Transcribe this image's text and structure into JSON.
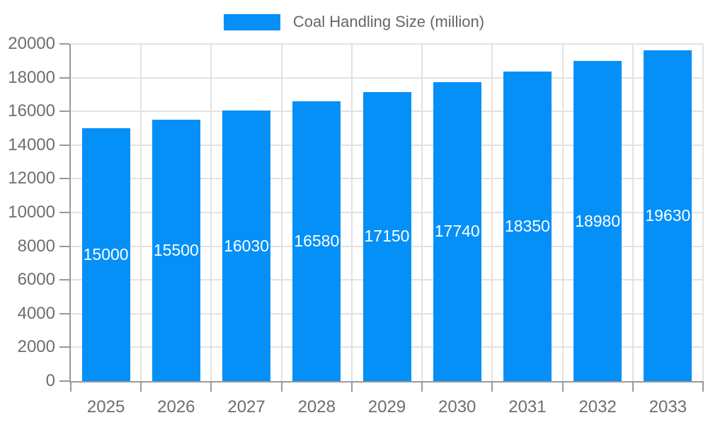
{
  "legend": {
    "label": "Coal Handling Size (million)"
  },
  "chart_data": {
    "type": "bar",
    "title": "Coal Handling Size (million)",
    "categories": [
      "2025",
      "2026",
      "2027",
      "2028",
      "2029",
      "2030",
      "2031",
      "2032",
      "2033"
    ],
    "values": [
      15000,
      15500,
      16030,
      16580,
      17150,
      17740,
      18350,
      18980,
      19630
    ],
    "series": [
      {
        "name": "Coal Handling Size (million)",
        "values": [
          15000,
          15500,
          16030,
          16580,
          17150,
          17740,
          18350,
          18980,
          19630
        ]
      }
    ],
    "value_labels": [
      "15000",
      "15500",
      "16030",
      "16580",
      "17150",
      "17740",
      "18350",
      "18980",
      "19630"
    ],
    "xlabel": "",
    "ylabel": "",
    "ylim": [
      0,
      20000
    ],
    "y_ticks": [
      "0",
      "2000",
      "4000",
      "6000",
      "8000",
      "10000",
      "12000",
      "14000",
      "16000",
      "18000",
      "20000"
    ],
    "grid": true,
    "legend_position": "top-center",
    "colors": {
      "bar": "#0590F8",
      "grid": "#e2e2e2",
      "axis": "#999999",
      "tick_label": "#6e6e6e",
      "legend_text": "#666666",
      "value_label": "#ffffff",
      "background": "#ffffff"
    }
  }
}
